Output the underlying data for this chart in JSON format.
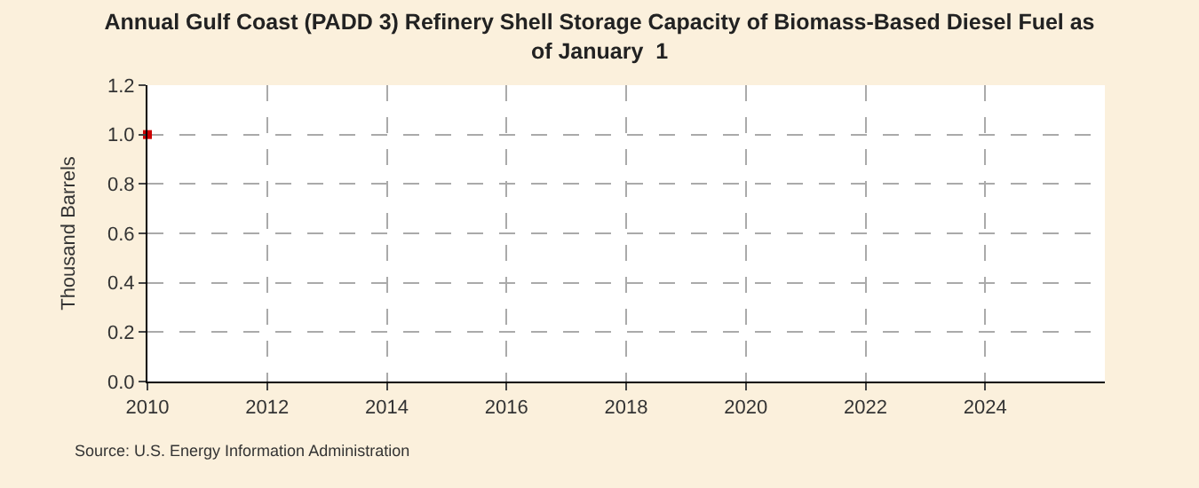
{
  "chart_data": {
    "type": "scatter",
    "title": "Annual Gulf Coast (PADD 3) Refinery Shell Storage Capacity of Biomass-Based Diesel Fuel as\nof January  1",
    "ylabel": "Thousand Barrels",
    "x": [
      2010
    ],
    "series": [
      {
        "color": "#cc0000",
        "values": [
          1.0
        ]
      }
    ],
    "xlim": [
      2010,
      2026
    ],
    "xticks": [
      2010,
      2012,
      2014,
      2016,
      2018,
      2020,
      2022,
      2024
    ],
    "ylim": [
      0,
      1.2
    ],
    "yticks": [
      {
        "value": 0,
        "label": "0.0"
      },
      {
        "value": 0.2,
        "label": "0.2"
      },
      {
        "value": 0.4,
        "label": "0.4"
      },
      {
        "value": 0.6,
        "label": "0.6"
      },
      {
        "value": 0.8,
        "label": "0.8"
      },
      {
        "value": 1.0,
        "label": "1.0"
      },
      {
        "value": 1.2,
        "label": "1.2"
      }
    ],
    "grid": true,
    "marker": "square",
    "annotations": [
      "Source: U.S. Energy Information Administration"
    ]
  }
}
